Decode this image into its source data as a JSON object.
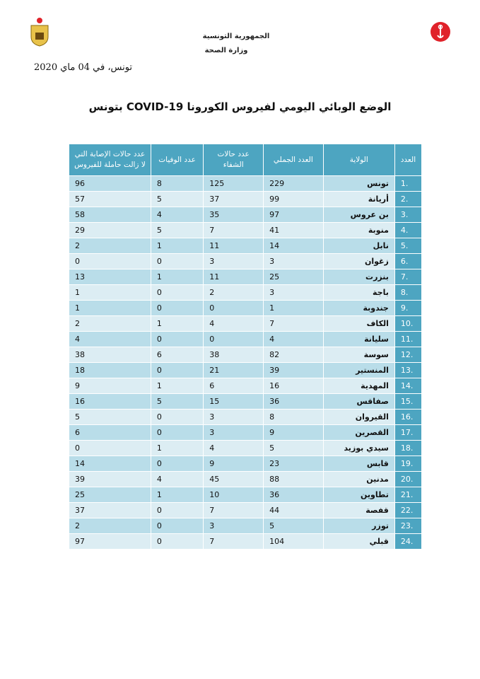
{
  "header": {
    "republic": "الجمهورية التونسية",
    "ministry": "وزارة الصحة",
    "date": "تونس، في 04 ماي 2020",
    "title": "الوضع الوبائي اليومي لفيروس الكورونا COVID-19 بتونس"
  },
  "colors": {
    "header": "#4da5c1",
    "row_dark": "#b9dde9",
    "row_light": "#dcedf3",
    "logo_red": "#e0222a"
  },
  "table": {
    "columns": [
      "العدد",
      "الولاية",
      "العدد الجملي",
      "عدد حالات الشفاء",
      "عدد الوفيات",
      "عدد حالات الإصابة التي لا زالت حاملة للفيروس"
    ],
    "rows": [
      [
        "1.",
        "تونس",
        "229",
        "125",
        "8",
        "96"
      ],
      [
        "2.",
        "أريانة",
        "99",
        "37",
        "5",
        "57"
      ],
      [
        "3.",
        "بن عروس",
        "97",
        "35",
        "4",
        "58"
      ],
      [
        "4.",
        "منوبة",
        "41",
        "7",
        "5",
        "29"
      ],
      [
        "5.",
        "نابل",
        "14",
        "11",
        "1",
        "2"
      ],
      [
        "6.",
        "زغوان",
        "3",
        "3",
        "0",
        "0"
      ],
      [
        "7.",
        "بنزرت",
        "25",
        "11",
        "1",
        "13"
      ],
      [
        "8.",
        "باجة",
        "3",
        "2",
        "0",
        "1"
      ],
      [
        "9.",
        "جندوبة",
        "1",
        "0",
        "0",
        "1"
      ],
      [
        "10.",
        "الكاف",
        "7",
        "4",
        "1",
        "2"
      ],
      [
        "11.",
        "سليانة",
        "4",
        "0",
        "0",
        "4"
      ],
      [
        "12.",
        "سوسة",
        "82",
        "38",
        "6",
        "38"
      ],
      [
        "13.",
        "المنستير",
        "39",
        "21",
        "0",
        "18"
      ],
      [
        "14.",
        "المهدية",
        "16",
        "6",
        "1",
        "9"
      ],
      [
        "15.",
        "صفاقس",
        "36",
        "15",
        "5",
        "16"
      ],
      [
        "16.",
        "القيروان",
        "8",
        "3",
        "0",
        "5"
      ],
      [
        "17.",
        "القصرين",
        "9",
        "3",
        "0",
        "6"
      ],
      [
        "18.",
        "سيدي بوزيد",
        "5",
        "4",
        "1",
        "0"
      ],
      [
        "19.",
        "قابس",
        "23",
        "9",
        "0",
        "14"
      ],
      [
        "20.",
        "مدنين",
        "88",
        "45",
        "4",
        "39"
      ],
      [
        "21.",
        "تطاوين",
        "36",
        "10",
        "1",
        "25"
      ],
      [
        "22.",
        "قفصة",
        "44",
        "7",
        "0",
        "37"
      ],
      [
        "23.",
        "توزر",
        "5",
        "3",
        "0",
        "2"
      ],
      [
        "24.",
        "قبلي",
        "104",
        "7",
        "0",
        "97"
      ]
    ]
  }
}
